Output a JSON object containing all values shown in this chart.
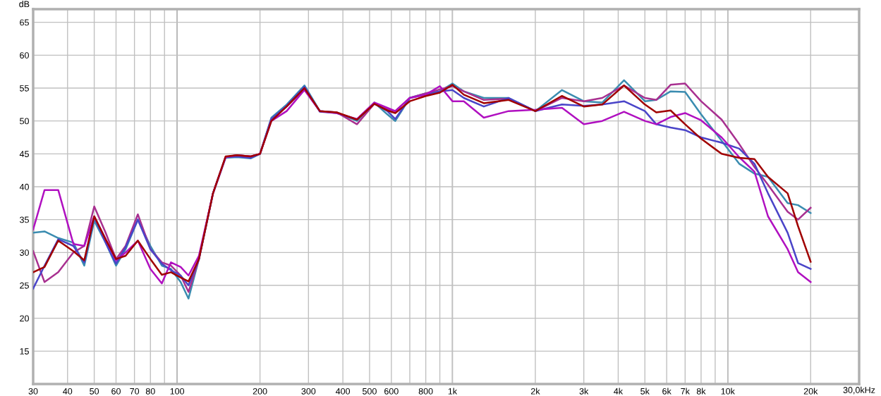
{
  "chart_data": {
    "type": "line",
    "ylabel": "dB",
    "log": "x",
    "grid": true,
    "line_style": "solid",
    "x": [
      30,
      33,
      37,
      42,
      46,
      50,
      55,
      60,
      65,
      72,
      80,
      88,
      95,
      103,
      110,
      120,
      135,
      150,
      165,
      185,
      200,
      220,
      250,
      290,
      330,
      380,
      450,
      520,
      580,
      620,
      700,
      800,
      900,
      1000,
      1100,
      1300,
      1600,
      2000,
      2500,
      3000,
      3500,
      4200,
      5000,
      5500,
      6200,
      7000,
      8000,
      9500,
      11000,
      12500,
      14000,
      16500,
      18000,
      20000
    ],
    "xlim": [
      30,
      30000
    ],
    "xticks": [
      30,
      40,
      50,
      60,
      70,
      80,
      {
        "value": 90,
        "label": null
      },
      100,
      200,
      300,
      400,
      500,
      600,
      {
        "value": 700,
        "label": null
      },
      800,
      {
        "value": 900,
        "label": null
      },
      {
        "value": 1000,
        "label": "1k"
      },
      {
        "value": 2000,
        "label": "2k"
      },
      {
        "value": 3000,
        "label": "3k"
      },
      {
        "value": 4000,
        "label": "4k"
      },
      {
        "value": 5000,
        "label": "5k"
      },
      {
        "value": 6000,
        "label": "6k"
      },
      {
        "value": 7000,
        "label": "7k"
      },
      {
        "value": 8000,
        "label": "8k"
      },
      {
        "value": 9000,
        "label": null
      },
      {
        "value": 10000,
        "label": "10k"
      },
      {
        "value": 20000,
        "label": "20k"
      },
      {
        "value": 30000,
        "label": null
      }
    ],
    "xlabel": "30,0kHz",
    "ylim": [
      10,
      67
    ],
    "yticks": [
      15,
      20,
      25,
      30,
      35,
      40,
      45,
      50,
      55,
      60,
      65
    ],
    "series": [
      {
        "color": "#3a8cb0",
        "values": [
          33.0,
          33.2,
          32.2,
          31.5,
          28.0,
          34.8,
          31.5,
          28.0,
          30.5,
          35.0,
          31.0,
          28.0,
          27.5,
          25.5,
          23.0,
          29.0,
          39.0,
          44.4,
          44.5,
          44.3,
          45.0,
          50.5,
          52.5,
          55.4,
          51.5,
          51.3,
          50.0,
          52.8,
          51.0,
          50.0,
          53.5,
          54.2,
          54.5,
          55.7,
          54.5,
          53.5,
          53.5,
          51.5,
          54.7,
          53.0,
          52.8,
          56.2,
          53.0,
          53.2,
          54.5,
          54.4,
          51.0,
          47.0,
          43.5,
          42.0,
          41.5,
          37.5,
          37.2,
          36.0
        ]
      },
      {
        "color": "#a83090",
        "values": [
          30.2,
          25.5,
          27.0,
          30.0,
          31.0,
          37.0,
          33.0,
          29.0,
          31.0,
          35.8,
          30.5,
          28.5,
          28.0,
          26.5,
          24.0,
          29.0,
          39.0,
          44.5,
          44.8,
          44.6,
          45.0,
          50.3,
          52.2,
          54.8,
          51.5,
          51.3,
          49.5,
          52.6,
          51.8,
          51.5,
          53.5,
          54.2,
          54.8,
          55.3,
          54.5,
          53.2,
          53.4,
          51.5,
          53.5,
          53.0,
          53.5,
          55.4,
          53.5,
          53.2,
          55.5,
          55.7,
          53.0,
          50.2,
          46.5,
          43.0,
          40.3,
          36.2,
          35.0,
          36.8
        ]
      },
      {
        "color": "#4a44c8",
        "values": [
          24.5,
          28.0,
          32.0,
          31.0,
          28.5,
          35.4,
          31.5,
          28.3,
          30.8,
          35.0,
          30.5,
          28.3,
          27.3,
          26.5,
          25.0,
          29.0,
          39.0,
          44.5,
          44.6,
          44.4,
          45.0,
          50.3,
          52.3,
          55.2,
          51.4,
          51.2,
          50.2,
          52.7,
          51.5,
          50.3,
          53.5,
          54.0,
          54.5,
          54.7,
          53.5,
          52.2,
          53.5,
          51.5,
          52.5,
          52.3,
          52.5,
          53.0,
          51.5,
          49.5,
          49.0,
          48.6,
          47.5,
          46.7,
          45.8,
          43.5,
          39.0,
          33.0,
          28.4,
          27.5
        ]
      },
      {
        "color": "#b010c0",
        "values": [
          33.5,
          39.5,
          39.5,
          31.3,
          31.0,
          35.5,
          32.0,
          28.8,
          30.0,
          31.8,
          27.5,
          25.3,
          28.5,
          27.8,
          26.5,
          29.5,
          39.0,
          44.5,
          44.8,
          44.6,
          45.0,
          50.0,
          51.5,
          54.7,
          51.5,
          51.2,
          50.3,
          52.8,
          52.0,
          51.5,
          53.5,
          54.0,
          55.3,
          53.0,
          53.0,
          50.5,
          51.5,
          51.7,
          52.0,
          49.5,
          50.0,
          51.4,
          50.0,
          49.5,
          50.6,
          51.2,
          50.1,
          47.5,
          44.5,
          42.3,
          35.5,
          30.5,
          27.0,
          25.5
        ]
      },
      {
        "color": "#a00000",
        "values": [
          27.0,
          27.8,
          31.8,
          30.2,
          28.8,
          35.5,
          32.0,
          29.0,
          29.5,
          31.8,
          29.0,
          26.6,
          27.0,
          26.2,
          25.6,
          29.0,
          39.0,
          44.6,
          44.8,
          44.6,
          45.0,
          50.0,
          52.2,
          55.0,
          51.5,
          51.3,
          50.2,
          52.6,
          51.6,
          51.2,
          53.0,
          53.8,
          54.3,
          55.5,
          54.0,
          52.7,
          53.2,
          51.5,
          53.8,
          52.2,
          52.5,
          55.4,
          52.5,
          51.3,
          51.6,
          49.5,
          47.3,
          45.0,
          44.4,
          44.2,
          41.5,
          39.0,
          34.0,
          28.6
        ]
      }
    ]
  }
}
